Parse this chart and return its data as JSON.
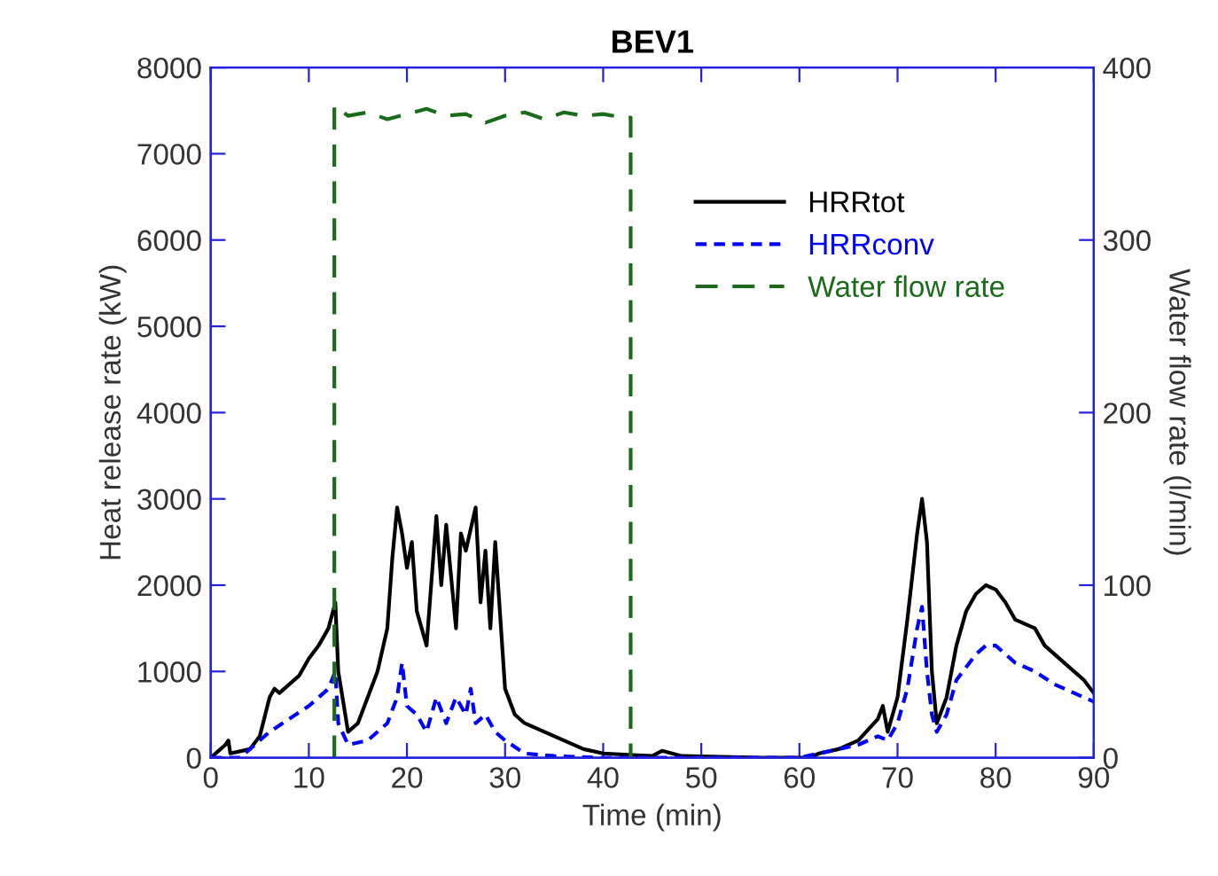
{
  "chart_data": {
    "type": "line",
    "title": "BEV1",
    "xlabel": "Time (min)",
    "ylabel": "Heat release rate (kW)",
    "y2label": "Water flow rate (l/min)",
    "xlim": [
      0,
      90
    ],
    "xticks": [
      0,
      10,
      20,
      30,
      40,
      50,
      60,
      70,
      80,
      90
    ],
    "ylim": [
      0,
      8000
    ],
    "yticks": [
      0,
      1000,
      2000,
      3000,
      4000,
      5000,
      6000,
      7000,
      8000
    ],
    "y2lim": [
      0,
      400
    ],
    "y2ticks": [
      0,
      100,
      200,
      300,
      400
    ],
    "grid": false,
    "legend": "top right",
    "series": [
      {
        "name": "HRRtot",
        "color": "#000000",
        "line_style": "solid",
        "x": [
          0,
          1,
          1.5,
          1.8,
          2,
          4,
          5,
          6,
          6.5,
          7,
          8,
          9,
          10,
          11,
          12,
          12.7,
          13,
          14,
          15,
          16,
          17,
          18,
          18.5,
          19,
          19.5,
          20,
          20.5,
          21,
          22,
          23,
          23.5,
          24,
          25,
          25.5,
          26,
          27,
          27.5,
          28,
          28.5,
          29,
          30,
          31,
          32,
          34,
          36,
          38,
          40,
          43,
          45,
          46,
          48,
          52,
          56,
          61,
          62,
          64,
          66,
          68,
          68.5,
          69,
          70,
          71,
          72,
          72.5,
          73,
          73.5,
          74,
          75,
          76,
          77,
          78,
          79,
          80,
          81,
          82,
          84,
          85,
          87,
          89,
          90
        ],
        "values": [
          0,
          100,
          150,
          200,
          50,
          100,
          250,
          700,
          800,
          750,
          850,
          950,
          1150,
          1300,
          1500,
          1800,
          1000,
          300,
          400,
          700,
          1000,
          1500,
          2300,
          2900,
          2600,
          2200,
          2500,
          1700,
          1300,
          2800,
          2000,
          2700,
          1500,
          2600,
          2400,
          2900,
          1800,
          2400,
          1500,
          2500,
          800,
          500,
          400,
          300,
          200,
          100,
          50,
          30,
          20,
          80,
          20,
          10,
          0,
          0,
          50,
          100,
          200,
          450,
          600,
          300,
          700,
          1600,
          2600,
          3000,
          2500,
          1000,
          400,
          700,
          1300,
          1700,
          1900,
          2000,
          1950,
          1800,
          1600,
          1500,
          1300,
          1100,
          900,
          750
        ]
      },
      {
        "name": "HRRconv",
        "color": "#0000ff",
        "line_style": "dashed",
        "x": [
          0,
          3,
          4,
          6,
          8,
          10,
          12,
          12.7,
          13,
          14,
          16,
          18,
          19,
          19.5,
          20,
          21,
          22,
          23,
          24,
          25,
          26,
          26.5,
          27,
          28,
          29,
          30,
          32,
          35,
          40,
          50,
          60,
          62,
          66,
          68,
          69,
          70,
          71,
          72,
          72.5,
          73,
          73.5,
          74,
          75,
          76,
          78,
          79,
          80,
          82,
          84,
          86,
          88,
          90
        ],
        "values": [
          0,
          0,
          100,
          300,
          450,
          600,
          800,
          1000,
          400,
          150,
          200,
          400,
          700,
          1100,
          600,
          500,
          300,
          700,
          400,
          700,
          500,
          800,
          400,
          500,
          300,
          200,
          50,
          20,
          0,
          0,
          0,
          50,
          150,
          250,
          200,
          400,
          800,
          1500,
          1750,
          1000,
          500,
          300,
          500,
          900,
          1200,
          1300,
          1300,
          1100,
          1000,
          850,
          750,
          650
        ]
      },
      {
        "name": "Water flow rate",
        "color": "#1a6b1a",
        "line_style": "dashed",
        "axis": "y2",
        "x": [
          12.6,
          12.6,
          14,
          16,
          18,
          20,
          22,
          24,
          26,
          28,
          30,
          32,
          34,
          36,
          38,
          40,
          42,
          42.8,
          42.8
        ],
        "values": [
          0,
          378,
          372,
          374,
          370,
          373,
          376,
          372,
          373,
          368,
          372,
          374,
          370,
          374,
          372,
          373,
          371,
          371,
          0
        ]
      }
    ]
  }
}
